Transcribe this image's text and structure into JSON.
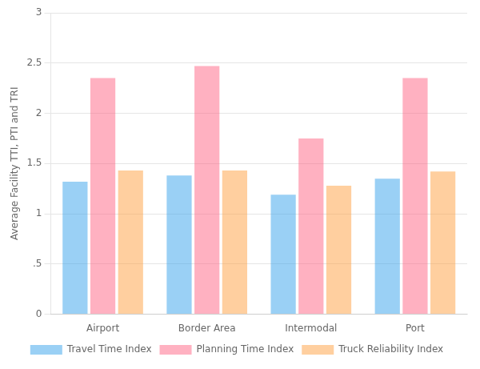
{
  "chart_data": {
    "type": "bar",
    "categories": [
      "Airport",
      "Border Area",
      "Intermodal",
      "Port"
    ],
    "series": [
      {
        "name": "Travel Time Index",
        "values": [
          1.32,
          1.38,
          1.19,
          1.35
        ]
      },
      {
        "name": "Planning Time Index",
        "values": [
          2.35,
          2.47,
          1.75,
          2.35
        ]
      },
      {
        "name": "Truck Reliability Index",
        "values": [
          1.43,
          1.43,
          1.28,
          1.42
        ]
      }
    ],
    "ylabel": "Average Facility TTI, PTI and TRI",
    "ylim": [
      0,
      3
    ],
    "yticks": [
      0,
      {
        "value": 0.5,
        "label": ".5"
      },
      1,
      1.5,
      2,
      2.5,
      3
    ],
    "grid": true,
    "legend": "bottom"
  }
}
